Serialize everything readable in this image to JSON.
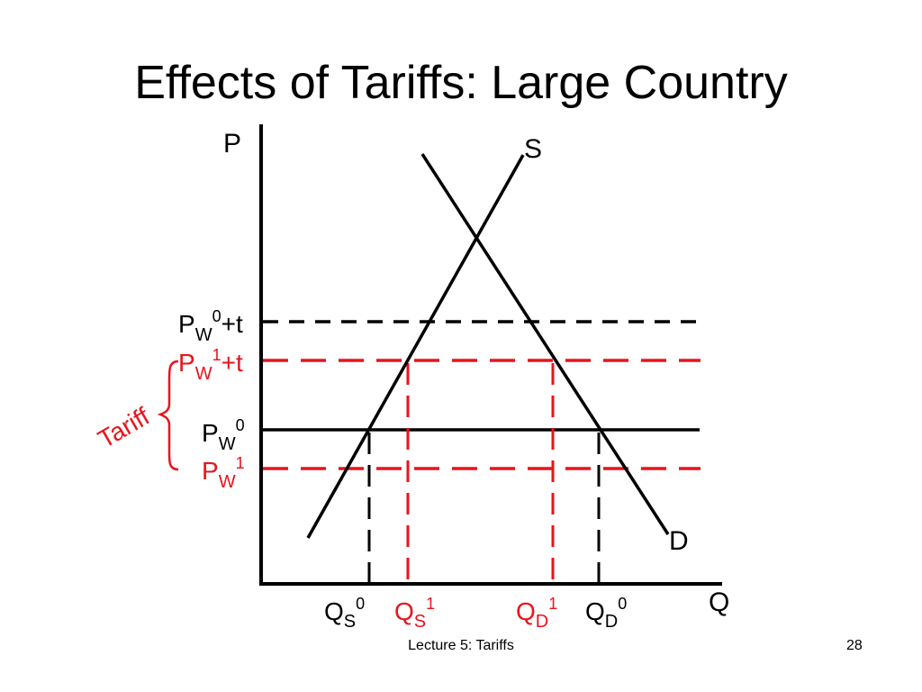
{
  "slide": {
    "title": "Effects of Tariffs:  Large Country",
    "footer": "Lecture 5: Tariffs",
    "page_number": "28"
  },
  "colors": {
    "black": "#000000",
    "red": "#e8141b"
  },
  "axes": {
    "p_label": "P",
    "q_label": "Q"
  },
  "curves": {
    "supply_label": "S",
    "demand_label": "D"
  },
  "prices": {
    "pw0_plus_t": {
      "base": "P",
      "sub": "W",
      "sup": "0",
      "suffix": "+t"
    },
    "pw1_plus_t": {
      "base": "P",
      "sub": "W",
      "sup": "1",
      "suffix": "+t"
    },
    "pw0": {
      "base": "P",
      "sub": "W",
      "sup": "0"
    },
    "pw1": {
      "base": "P",
      "sub": "W",
      "sup": "1"
    }
  },
  "quantities": {
    "qs0": {
      "base": "Q",
      "sub": "S",
      "sup": "0"
    },
    "qs1": {
      "base": "Q",
      "sub": "S",
      "sup": "1"
    },
    "qd1": {
      "base": "Q",
      "sub": "D",
      "sup": "1"
    },
    "qd0": {
      "base": "Q",
      "sub": "D",
      "sup": "0"
    }
  },
  "annotations": {
    "tariff_label": "Tariff"
  }
}
